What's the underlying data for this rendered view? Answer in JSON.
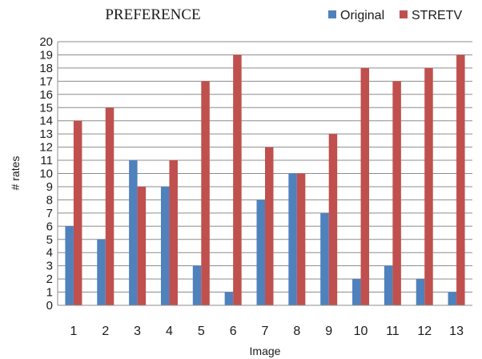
{
  "chart_data": {
    "type": "bar",
    "title": "PREFERENCE",
    "xlabel": "Image",
    "ylabel": "# rates",
    "categories": [
      "1",
      "2",
      "3",
      "4",
      "5",
      "6",
      "7",
      "8",
      "9",
      "10",
      "11",
      "12",
      "13"
    ],
    "series": [
      {
        "name": "Original",
        "color": "#4f81bd",
        "values": [
          6,
          5,
          11,
          9,
          3,
          1,
          8,
          10,
          7,
          2,
          3,
          2,
          1
        ]
      },
      {
        "name": "STRETV",
        "color": "#c0504d",
        "values": [
          14,
          15,
          9,
          11,
          17,
          19,
          12,
          10,
          13,
          18,
          17,
          18,
          19
        ]
      }
    ],
    "ylim": [
      0,
      20
    ],
    "yticks": [
      "0",
      "1",
      "2",
      "3",
      "4",
      "5",
      "6",
      "7",
      "8",
      "9",
      "10",
      "11",
      "12",
      "13",
      "14",
      "15",
      "16",
      "17",
      "18",
      "19",
      "20"
    ],
    "grid": true,
    "legend": "top-right"
  }
}
